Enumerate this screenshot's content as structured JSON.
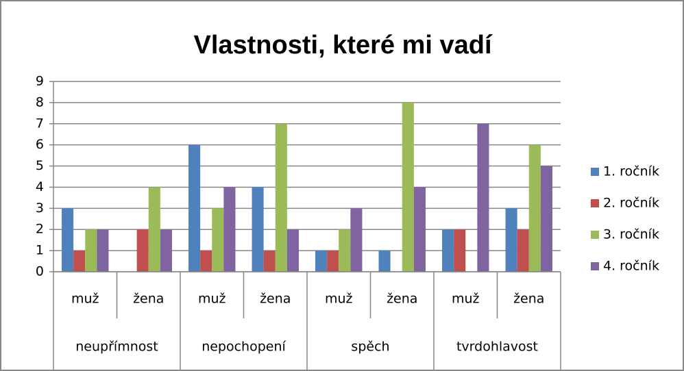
{
  "chart_data": {
    "type": "bar",
    "title": "Vlastnosti, které mi vadí",
    "categories": [
      "muž",
      "žena",
      "muž",
      "žena",
      "muž",
      "žena",
      "muž",
      "žena"
    ],
    "groups": [
      "neupřímnost",
      "nepochopení",
      "spěch",
      "tvrdohlavost"
    ],
    "series": [
      {
        "name": "1. ročník",
        "color": "#4f81bd",
        "values": [
          3,
          0,
          6,
          4,
          1,
          1,
          2,
          3
        ]
      },
      {
        "name": "2. ročník",
        "color": "#c0504d",
        "values": [
          1,
          2,
          1,
          1,
          1,
          0,
          2,
          2
        ]
      },
      {
        "name": "3. ročník",
        "color": "#9bbb59",
        "values": [
          2,
          4,
          3,
          7,
          2,
          8,
          0,
          6
        ]
      },
      {
        "name": "4. ročník",
        "color": "#8064a2",
        "values": [
          2,
          2,
          4,
          2,
          3,
          4,
          7,
          5
        ]
      }
    ],
    "ylim": [
      0,
      9
    ],
    "yticks": [
      0,
      1,
      2,
      3,
      4,
      5,
      6,
      7,
      8,
      9
    ],
    "grid": true,
    "legend": "right"
  }
}
